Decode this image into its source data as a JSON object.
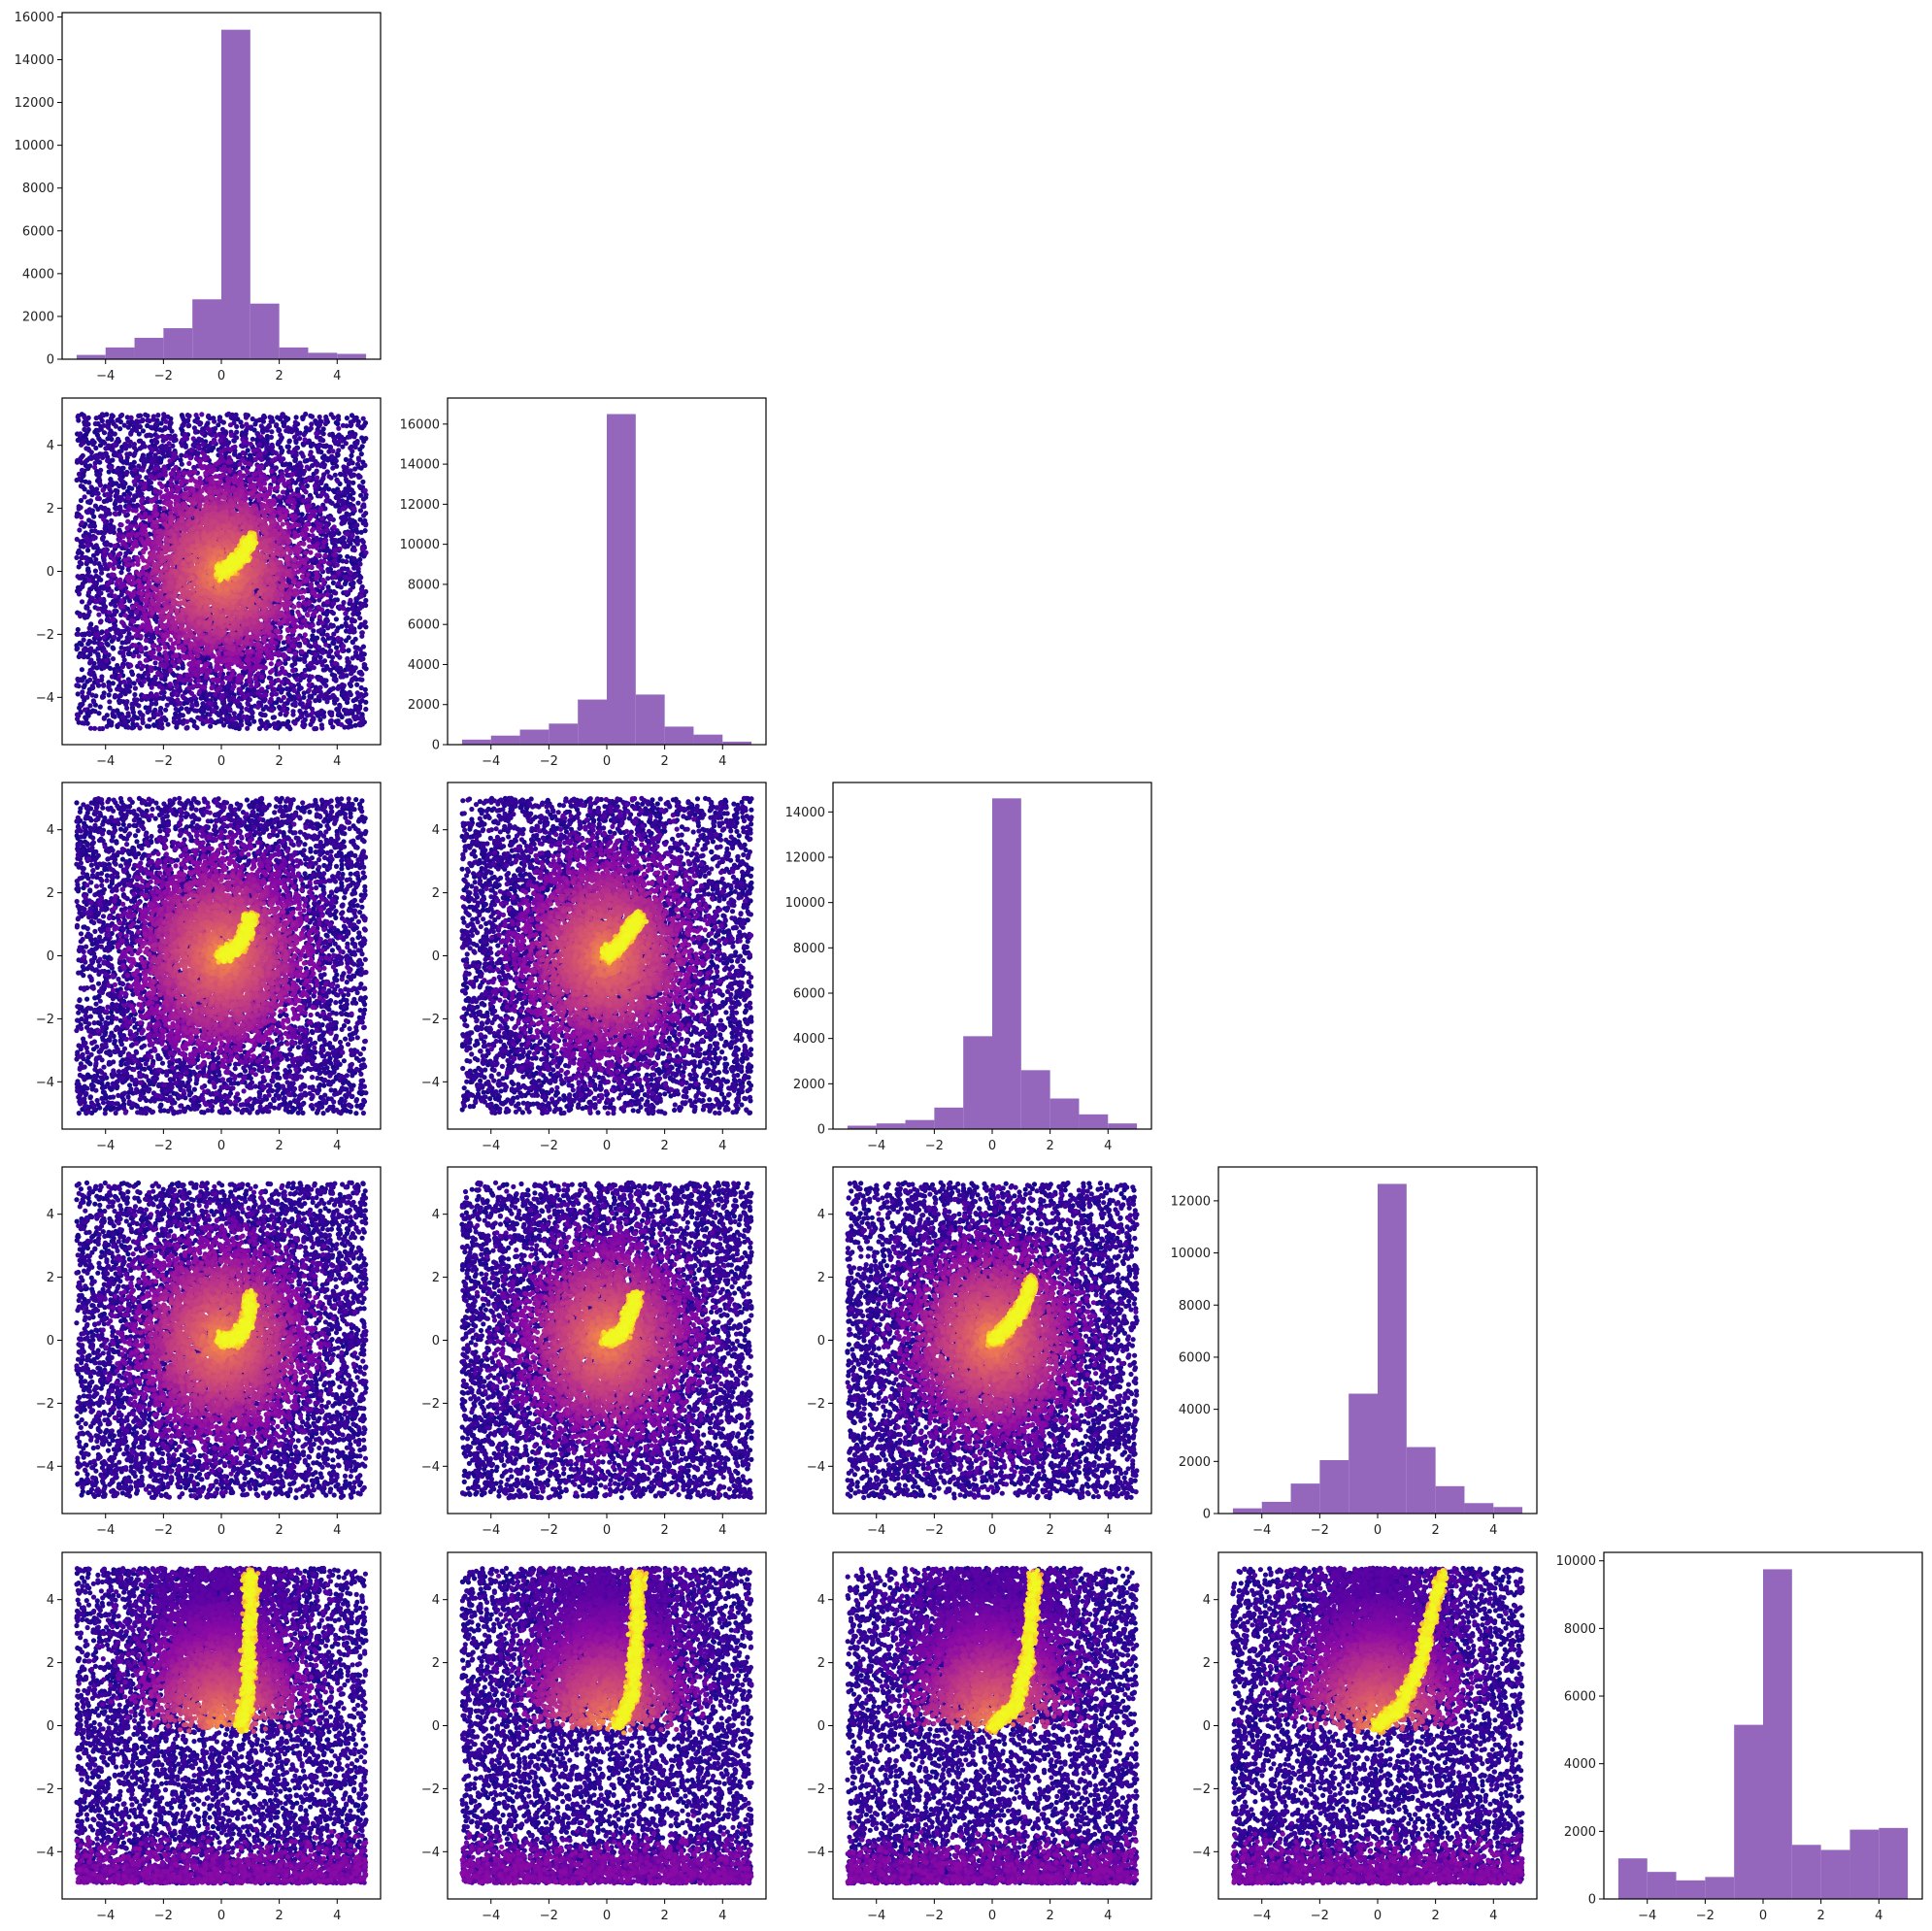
{
  "chart_data": {
    "type": "corner-plot",
    "n_params": 5,
    "colors": {
      "hist_fill": "#9467bd",
      "colormap": "plasma",
      "frame": "#000000"
    },
    "x_ticks": [
      -4,
      -2,
      0,
      2,
      4
    ],
    "x_tick_labels": [
      "−4",
      "−2",
      "0",
      "2",
      "4"
    ],
    "scatter_y_ticks": [
      -4,
      -2,
      0,
      2,
      4
    ],
    "scatter_y_tick_labels": [
      "−4",
      "−2",
      "0",
      "2",
      "4"
    ],
    "xlim": [
      -5.5,
      5.5
    ],
    "scatter_ylim": [
      -5.5,
      5.5
    ],
    "hist_bin_edges": [
      -5,
      -4,
      -3,
      -2,
      -1,
      0,
      1,
      2,
      3,
      4,
      5
    ],
    "histograms": [
      {
        "index": 0,
        "values": [
          200,
          550,
          1000,
          1450,
          2800,
          15400,
          2600,
          550,
          300,
          250
        ],
        "ylim": [
          0,
          16200
        ],
        "yticks": [
          0,
          2000,
          4000,
          6000,
          8000,
          10000,
          12000,
          14000,
          16000
        ],
        "ytick_labels": [
          "0",
          "2000",
          "4000",
          "6000",
          "8000",
          "10000",
          "12000",
          "14000",
          "16000"
        ]
      },
      {
        "index": 1,
        "values": [
          250,
          450,
          750,
          1050,
          2250,
          16500,
          2500,
          900,
          500,
          150
        ],
        "ylim": [
          0,
          17300
        ],
        "yticks": [
          0,
          2000,
          4000,
          6000,
          8000,
          10000,
          12000,
          14000,
          16000
        ],
        "ytick_labels": [
          "0",
          "2000",
          "4000",
          "6000",
          "8000",
          "10000",
          "12000",
          "14000",
          "16000"
        ]
      },
      {
        "index": 2,
        "values": [
          150,
          250,
          400,
          950,
          4100,
          14600,
          2600,
          1350,
          650,
          250
        ],
        "ylim": [
          0,
          15300
        ],
        "yticks": [
          0,
          2000,
          4000,
          6000,
          8000,
          10000,
          12000,
          14000
        ],
        "ytick_labels": [
          "0",
          "2000",
          "4000",
          "6000",
          "8000",
          "10000",
          "12000",
          "14000"
        ]
      },
      {
        "index": 3,
        "values": [
          200,
          450,
          1150,
          2050,
          4600,
          12650,
          2550,
          1050,
          400,
          250
        ],
        "ylim": [
          0,
          13300
        ],
        "yticks": [
          0,
          2000,
          4000,
          6000,
          8000,
          10000,
          12000
        ],
        "ytick_labels": [
          "0",
          "2000",
          "4000",
          "6000",
          "8000",
          "10000",
          "12000"
        ]
      },
      {
        "index": 4,
        "values": [
          1200,
          800,
          550,
          650,
          5150,
          9750,
          1600,
          1450,
          2050,
          2100
        ],
        "ylim": [
          0,
          10250
        ],
        "yticks": [
          0,
          2000,
          4000,
          6000,
          8000,
          10000
        ],
        "ytick_labels": [
          "0",
          "2000",
          "4000",
          "6000",
          "8000",
          "10000"
        ]
      }
    ],
    "scatter_panels": [
      {
        "row": 1,
        "col": 0,
        "points": 12000,
        "ridge": [
          [
            0,
            0
          ],
          [
            0.4,
            0.2
          ],
          [
            0.7,
            0.5
          ],
          [
            1.0,
            1.0
          ]
        ]
      },
      {
        "row": 2,
        "col": 0,
        "points": 12000,
        "ridge": [
          [
            0,
            0
          ],
          [
            0.5,
            0.2
          ],
          [
            0.8,
            0.6
          ],
          [
            1.0,
            1.2
          ]
        ]
      },
      {
        "row": 2,
        "col": 1,
        "points": 12000,
        "ridge": [
          [
            0,
            0
          ],
          [
            0.4,
            0.3
          ],
          [
            0.8,
            0.8
          ],
          [
            1.1,
            1.2
          ]
        ]
      },
      {
        "row": 3,
        "col": 0,
        "points": 12000,
        "ridge": [
          [
            0,
            0
          ],
          [
            0.6,
            0.1
          ],
          [
            0.9,
            0.6
          ],
          [
            1.0,
            1.4
          ]
        ]
      },
      {
        "row": 3,
        "col": 1,
        "points": 12000,
        "ridge": [
          [
            0,
            0
          ],
          [
            0.5,
            0.2
          ],
          [
            0.8,
            0.8
          ],
          [
            1.0,
            1.4
          ]
        ]
      },
      {
        "row": 3,
        "col": 2,
        "points": 12000,
        "ridge": [
          [
            0,
            0
          ],
          [
            0.5,
            0.4
          ],
          [
            1.0,
            1.0
          ],
          [
            1.4,
            1.9
          ]
        ]
      },
      {
        "row": 4,
        "col": 0,
        "points": 12000,
        "ridge": [
          [
            0.7,
            0
          ],
          [
            0.9,
            0.8
          ],
          [
            0.95,
            2.0
          ],
          [
            1.0,
            4.0
          ],
          [
            1.0,
            4.8
          ]
        ]
      },
      {
        "row": 4,
        "col": 1,
        "points": 12000,
        "ridge": [
          [
            0.4,
            0
          ],
          [
            0.9,
            1.0
          ],
          [
            1.0,
            2.5
          ],
          [
            1.1,
            4.8
          ]
        ]
      },
      {
        "row": 4,
        "col": 2,
        "points": 12000,
        "ridge": [
          [
            0,
            0
          ],
          [
            0.8,
            0.6
          ],
          [
            1.2,
            2.0
          ],
          [
            1.5,
            4.8
          ]
        ]
      },
      {
        "row": 4,
        "col": 3,
        "points": 12000,
        "ridge": [
          [
            0,
            0
          ],
          [
            0.8,
            0.6
          ],
          [
            1.5,
            2.0
          ],
          [
            2.2,
            4.8
          ]
        ]
      }
    ]
  }
}
